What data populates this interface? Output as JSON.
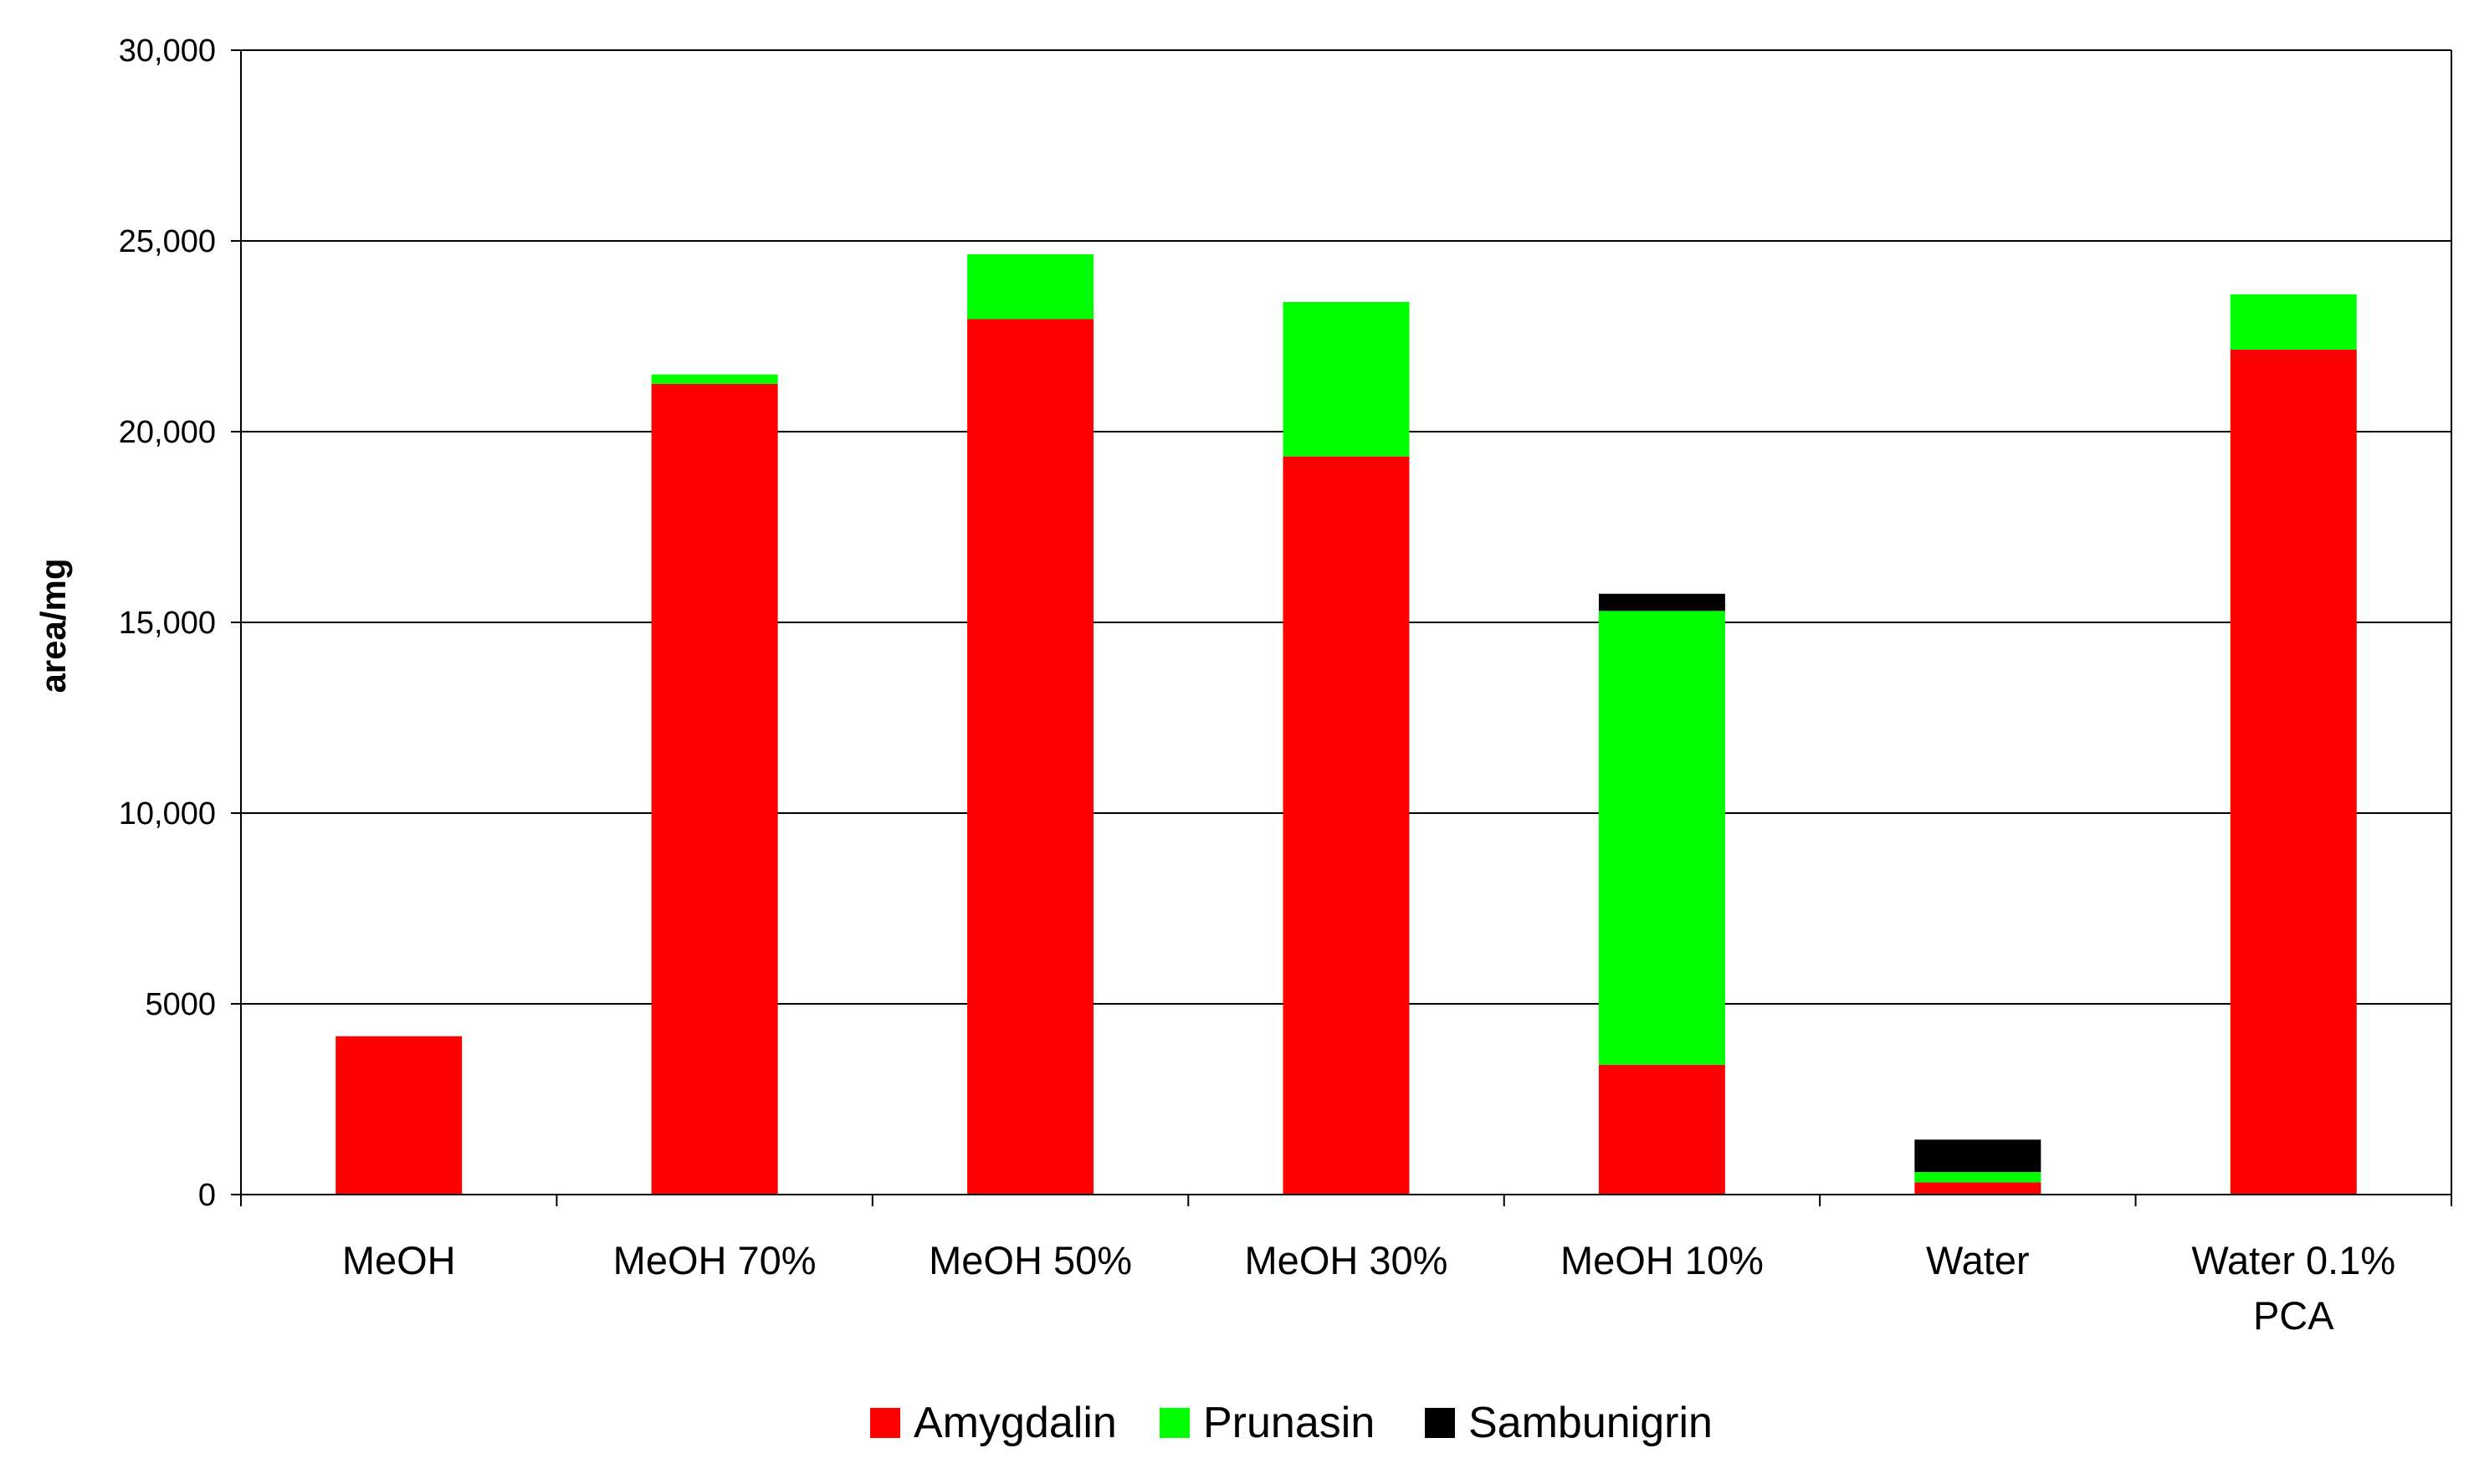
{
  "chart_data": {
    "type": "bar",
    "stacked": true,
    "title": "",
    "xlabel": "",
    "ylabel": "area/mg",
    "ylim": [
      0,
      30000
    ],
    "yticks": [
      0,
      5000,
      10000,
      15000,
      20000,
      25000,
      30000
    ],
    "ytick_labels": [
      "0",
      "5000",
      "10,000",
      "15,000",
      "20,000",
      "25,000",
      "30,000"
    ],
    "grid": true,
    "legend_position": "bottom",
    "categories": [
      "MeOH",
      "MeOH 70%",
      "MeOH 50%",
      "MeOH 30%",
      "MeOH 10%",
      "Water",
      "Water 0.1% PCA"
    ],
    "category_lines": [
      [
        "MeOH"
      ],
      [
        "MeOH 70%"
      ],
      [
        "MeOH 50%"
      ],
      [
        "MeOH 30%"
      ],
      [
        "MeOH 10%"
      ],
      [
        "Water"
      ],
      [
        "Water 0.1%",
        "PCA"
      ]
    ],
    "series": [
      {
        "name": "Amygdalin",
        "color": "#ff0000",
        "values": [
          4150,
          21250,
          22950,
          19350,
          3400,
          320,
          22150
        ]
      },
      {
        "name": "Prunasin",
        "color": "#00ff00",
        "values": [
          0,
          250,
          1700,
          4050,
          11900,
          270,
          1450
        ]
      },
      {
        "name": "Sambunigrin",
        "color": "#000000",
        "values": [
          0,
          0,
          0,
          0,
          450,
          850,
          0
        ]
      }
    ]
  }
}
